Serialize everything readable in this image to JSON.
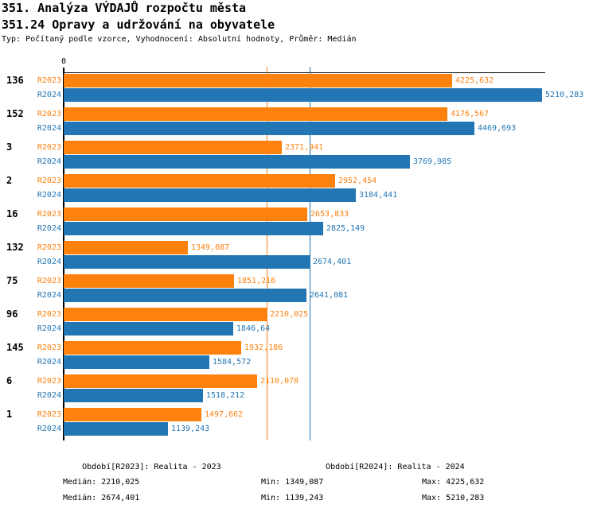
{
  "header": {
    "title": "351. Analýza VÝDAJŮ rozpočtu města",
    "subtitle": "351.24 Opravy a udržování na obyvatele",
    "meta": "Typ: Počítaný podle vzorce, Vyhodnocení: Absolutní hodnoty, Průměr: Medián"
  },
  "colors": {
    "r2023": "#FD810D",
    "r2024": "#2276B4",
    "axis": "#000000",
    "background": "#FFFFFF"
  },
  "chart_data": {
    "type": "bar",
    "orientation": "horizontal",
    "title": "351.24 Opravy a udržování na obyvatele",
    "x_axis_zero_label": "0",
    "xlim": [
      0,
      5245
    ],
    "grid": false,
    "categories": [
      "136",
      "152",
      "3",
      "2",
      "16",
      "132",
      "75",
      "96",
      "145",
      "6",
      "1"
    ],
    "series": [
      {
        "name": "R2023",
        "color": "#FD810D",
        "values": [
          4225.632,
          4176.567,
          2371.941,
          2952.454,
          2653.833,
          1349.087,
          1851.216,
          2210.025,
          1932.186,
          2110.078,
          1497.662
        ],
        "labels": [
          "4225,632",
          "4176,567",
          "2371,941",
          "2952,454",
          "2653,833",
          "1349,087",
          "1851,216",
          "2210,025",
          "1932,186",
          "2110,078",
          "1497,662"
        ]
      },
      {
        "name": "R2024",
        "color": "#2276B4",
        "values": [
          5210.283,
          4469.693,
          3769.985,
          3184.441,
          2825.149,
          2674.401,
          2641.081,
          1846.64,
          1584.572,
          1518.212,
          1139.243
        ],
        "labels": [
          "5210,283",
          "4469,693",
          "3769,985",
          "3184,441",
          "2825,149",
          "2674,401",
          "2641,081",
          "1846,64",
          "1584,572",
          "1518,212",
          "1139,243"
        ]
      }
    ],
    "median_lines": [
      {
        "series": "R2023",
        "value": 2210.025,
        "color": "#FD810D"
      },
      {
        "series": "R2024",
        "value": 2674.401,
        "color": "#2276B4"
      }
    ]
  },
  "legend": {
    "r2023": "Období[R2023]: Realita - 2023",
    "r2024": "Období[R2024]: Realita - 2024"
  },
  "stats": {
    "r2023": {
      "median": "Medián: 2210,025",
      "min": "Min: 1349,087",
      "max": "Max: 4225,632"
    },
    "r2024": {
      "median": "Medián: 2674,401",
      "min": "Min: 1139,243",
      "max": "Max: 5210,283"
    }
  }
}
